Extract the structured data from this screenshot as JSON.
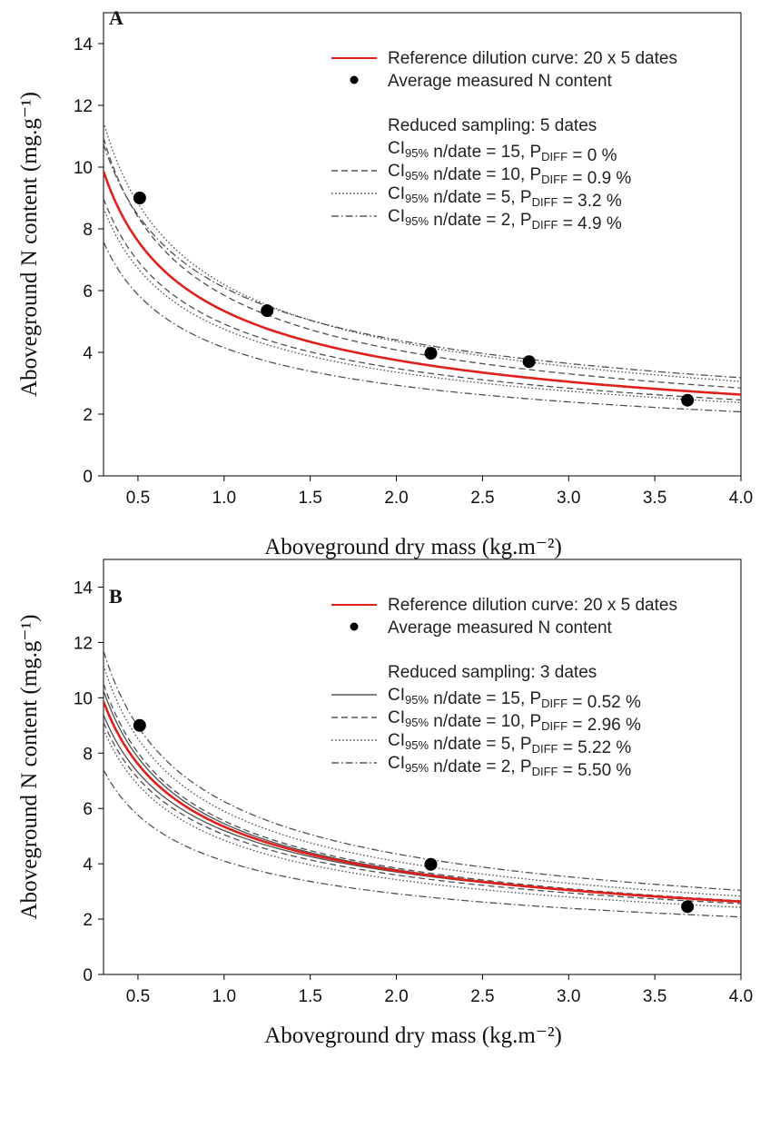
{
  "colors": {
    "reference_curve": "#e0201b",
    "bounds": "#505050",
    "points": "#000000",
    "axes": "#000000"
  },
  "chart_data": [
    {
      "type": "line",
      "panel_label": "A",
      "xlabel": "Aboveground dry mass (kg.m⁻²)",
      "ylabel": "Aboveground N content (mg.g⁻¹)",
      "xlim": [
        0.3,
        4.0
      ],
      "ylim": [
        0,
        15
      ],
      "x_ticks": [
        "0.5",
        "1.0",
        "1.5",
        "2.0",
        "2.5",
        "3.0",
        "3.5",
        "4.0"
      ],
      "y_ticks": [
        "0",
        "2",
        "4",
        "6",
        "8",
        "10",
        "12",
        "14"
      ],
      "grid": false,
      "legend_position": "top-right",
      "reference_curve": {
        "label": "Reference dilution curve: 20 x 5 dates",
        "a": 5.34,
        "b": 0.51
      },
      "measured_points": {
        "label": "Average measured N content",
        "x": [
          0.51,
          1.25,
          2.2,
          2.77,
          3.69
        ],
        "y": [
          9.0,
          5.35,
          3.97,
          3.7,
          2.45
        ]
      },
      "reduced_sampling_label": "Reduced sampling: 5 dates",
      "series": [
        {
          "name": "15",
          "pdiff": "0 %",
          "style": "solid",
          "show_line": false,
          "upper": {
            "a": 5.34,
            "b": 0.51
          },
          "lower": {
            "a": 5.34,
            "b": 0.51
          }
        },
        {
          "name": "10",
          "pdiff": "0.9 %",
          "style": "dashed",
          "show_line": true,
          "upper": {
            "a": 5.85,
            "b": 0.52
          },
          "lower": {
            "a": 4.92,
            "b": 0.5
          }
        },
        {
          "name": "5",
          "pdiff": "3.2 %",
          "style": "dotted",
          "show_line": true,
          "upper": {
            "a": 6.2,
            "b": 0.51
          },
          "lower": {
            "a": 4.75,
            "b": 0.5
          }
        },
        {
          "name": "2",
          "pdiff": "4.9 %",
          "style": "dashdot",
          "show_line": true,
          "upper": {
            "a": 6.1,
            "b": 0.47
          },
          "lower": {
            "a": 4.15,
            "b": 0.5
          }
        }
      ]
    },
    {
      "type": "line",
      "panel_label": "B",
      "xlabel": "Aboveground dry mass (kg.m⁻²)",
      "ylabel": "Aboveground N content (mg.g⁻¹)",
      "xlim": [
        0.3,
        4.0
      ],
      "ylim": [
        0,
        15
      ],
      "x_ticks": [
        "0.5",
        "1.0",
        "1.5",
        "2.0",
        "2.5",
        "3.0",
        "3.5",
        "4.0"
      ],
      "y_ticks": [
        "0",
        "2",
        "4",
        "6",
        "8",
        "10",
        "12",
        "14"
      ],
      "grid": false,
      "legend_position": "top-right",
      "reference_curve": {
        "label": "Reference dilution curve: 20 x 5 dates",
        "a": 5.34,
        "b": 0.51
      },
      "measured_points": {
        "label": "Average measured N content",
        "x": [
          0.51,
          2.2,
          3.69
        ],
        "y": [
          9.0,
          3.98,
          2.45
        ]
      },
      "reduced_sampling_label": "Reduced sampling: 3 dates",
      "series": [
        {
          "name": "15",
          "pdiff": "0.52 %",
          "style": "solid",
          "show_line": true,
          "upper": {
            "a": 5.45,
            "b": 0.525
          },
          "lower": {
            "a": 5.2,
            "b": 0.49
          }
        },
        {
          "name": "10",
          "pdiff": "2.96 %",
          "style": "dashed",
          "show_line": true,
          "upper": {
            "a": 5.55,
            "b": 0.53
          },
          "lower": {
            "a": 5.05,
            "b": 0.49
          }
        },
        {
          "name": "5",
          "pdiff": "5.22 %",
          "style": "dotted",
          "show_line": true,
          "upper": {
            "a": 5.9,
            "b": 0.53
          },
          "lower": {
            "a": 4.85,
            "b": 0.5
          }
        },
        {
          "name": "2",
          "pdiff": "5.50 %",
          "style": "dashdot",
          "show_line": true,
          "upper": {
            "a": 6.25,
            "b": 0.52
          },
          "lower": {
            "a": 4.1,
            "b": 0.49
          }
        }
      ]
    }
  ]
}
